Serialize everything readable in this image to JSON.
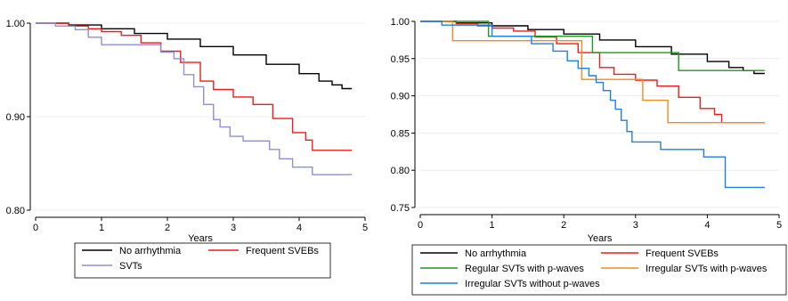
{
  "chart_data": [
    {
      "type": "line",
      "step": true,
      "xlabel": "Years",
      "ylabel": "",
      "xlim": [
        0,
        5
      ],
      "ylim": [
        0.8,
        1.0
      ],
      "xticks": [
        "0",
        "1",
        "2",
        "3",
        "4",
        "5"
      ],
      "yticks": [
        "0.80",
        "0.90",
        "1.00"
      ],
      "xtick_values": [
        0,
        1,
        2,
        3,
        4,
        5
      ],
      "ytick_values": [
        0.8,
        0.9,
        1.0
      ],
      "legend": "bottom",
      "series": [
        {
          "name": "No arrhythmia",
          "color": "#000000",
          "x": [
            0,
            0.5,
            1,
            1.5,
            2,
            2.5,
            3,
            3.5,
            4,
            4.3,
            4.5,
            4.65,
            4.8
          ],
          "y": [
            1.0,
            0.998,
            0.994,
            0.989,
            0.983,
            0.975,
            0.966,
            0.956,
            0.946,
            0.938,
            0.934,
            0.93,
            0.93
          ]
        },
        {
          "name": "Frequent SVEBs",
          "color": "#ee1c1c",
          "x": [
            0,
            0.5,
            0.8,
            1,
            1.3,
            1.6,
            1.9,
            2.2,
            2.5,
            2.7,
            3.0,
            3.3,
            3.6,
            3.9,
            4.1,
            4.2,
            4.8
          ],
          "y": [
            1.0,
            0.997,
            0.994,
            0.991,
            0.987,
            0.979,
            0.97,
            0.958,
            0.938,
            0.929,
            0.921,
            0.913,
            0.898,
            0.883,
            0.875,
            0.864,
            0.864
          ]
        },
        {
          "name": "SVTs",
          "color": "#8f8fd6",
          "x": [
            0,
            0.3,
            0.6,
            0.8,
            1.0,
            1.5,
            1.9,
            2.1,
            2.25,
            2.4,
            2.55,
            2.7,
            2.8,
            2.95,
            3.15,
            3.55,
            3.7,
            3.9,
            4.2,
            4.8
          ],
          "y": [
            1.0,
            0.997,
            0.993,
            0.985,
            0.977,
            0.977,
            0.969,
            0.962,
            0.945,
            0.932,
            0.913,
            0.897,
            0.889,
            0.879,
            0.874,
            0.865,
            0.855,
            0.846,
            0.838,
            0.838
          ]
        }
      ]
    },
    {
      "type": "line",
      "step": true,
      "xlabel": "Years",
      "ylabel": "",
      "xlim": [
        0,
        5
      ],
      "ylim": [
        0.75,
        1.0
      ],
      "xticks": [
        "0",
        "1",
        "2",
        "3",
        "4",
        "5"
      ],
      "yticks": [
        "0.75",
        "0.80",
        "0.85",
        "0.90",
        "0.95",
        "1.00"
      ],
      "xtick_values": [
        0,
        1,
        2,
        3,
        4,
        5
      ],
      "ytick_values": [
        0.75,
        0.8,
        0.85,
        0.9,
        0.95,
        1.0
      ],
      "legend": "bottom",
      "series": [
        {
          "name": "No arrhythmia",
          "color": "#000000",
          "x": [
            0,
            0.5,
            1,
            1.5,
            2,
            2.5,
            3,
            3.5,
            4,
            4.3,
            4.5,
            4.65,
            4.8
          ],
          "y": [
            1.0,
            0.998,
            0.994,
            0.989,
            0.983,
            0.975,
            0.966,
            0.956,
            0.946,
            0.938,
            0.934,
            0.93,
            0.93
          ]
        },
        {
          "name": "Frequent SVEBs",
          "color": "#ee1c1c",
          "x": [
            0,
            0.5,
            0.8,
            1,
            1.3,
            1.6,
            1.9,
            2.2,
            2.5,
            2.7,
            3.0,
            3.3,
            3.6,
            3.9,
            4.1,
            4.2,
            4.8
          ],
          "y": [
            1.0,
            0.997,
            0.994,
            0.991,
            0.987,
            0.979,
            0.97,
            0.958,
            0.938,
            0.929,
            0.921,
            0.913,
            0.898,
            0.883,
            0.875,
            0.864,
            0.864
          ]
        },
        {
          "name": "Regular SVTs with p-waves",
          "color": "#1a9a1a",
          "x": [
            0,
            0.95,
            2.4,
            3.6,
            4.8
          ],
          "y": [
            1.0,
            0.98,
            0.958,
            0.934,
            0.934
          ]
        },
        {
          "name": "Irregular SVTs with p-waves",
          "color": "#f58a1f",
          "x": [
            0,
            0.45,
            2.25,
            3.1,
            3.45,
            4.8
          ],
          "y": [
            1.0,
            0.974,
            0.922,
            0.894,
            0.864,
            0.864
          ]
        },
        {
          "name": "Irregular SVTs without p-waves",
          "color": "#1f7fe6",
          "x": [
            0,
            0.3,
            1.0,
            1.55,
            1.85,
            2.05,
            2.2,
            2.35,
            2.45,
            2.55,
            2.65,
            2.72,
            2.8,
            2.88,
            2.95,
            3.35,
            3.95,
            4.25,
            4.8
          ],
          "y": [
            1.0,
            0.995,
            0.98,
            0.97,
            0.96,
            0.947,
            0.937,
            0.927,
            0.918,
            0.907,
            0.894,
            0.882,
            0.867,
            0.852,
            0.838,
            0.828,
            0.818,
            0.777,
            0.777
          ]
        }
      ]
    }
  ]
}
